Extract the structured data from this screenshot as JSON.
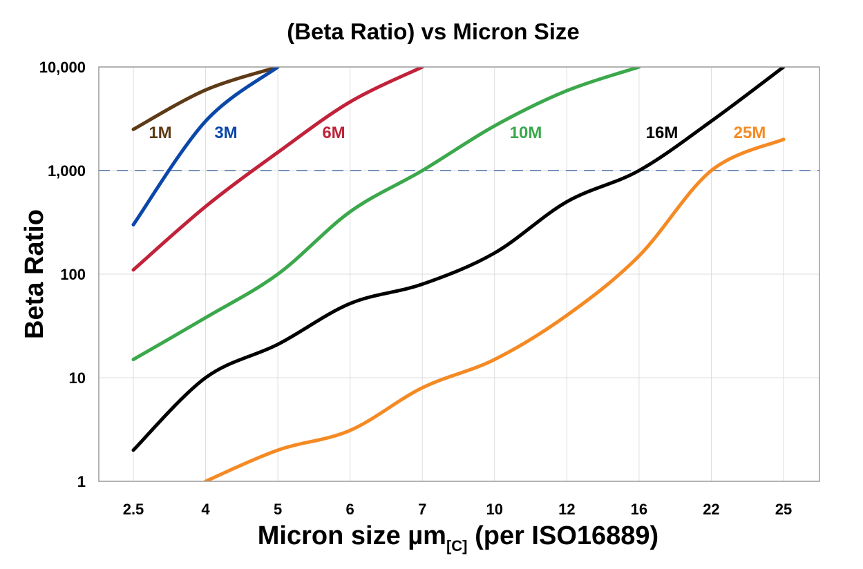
{
  "chart_data": {
    "type": "line",
    "title": "(Beta Ratio) vs Micron Size",
    "xlabel_main": "Micron size µm",
    "xlabel_sub": "[C]",
    "xlabel_tail": " (per ISO16889)",
    "ylabel": "Beta Ratio",
    "yscale": "log",
    "ylim": [
      1,
      10000
    ],
    "yticks": [
      1,
      10,
      100,
      1000,
      10000
    ],
    "ytick_labels": [
      "1",
      "10",
      "100",
      "1,000",
      "10,000"
    ],
    "categories": [
      "2.5",
      "4",
      "5",
      "6",
      "7",
      "10",
      "12",
      "16",
      "22",
      "25"
    ],
    "grid": true,
    "reference_line": {
      "y": 1000,
      "style": "dashed",
      "color": "#4a6fa5"
    },
    "series": [
      {
        "name": "1M",
        "color": "#5e3a17",
        "values": [
          2500,
          6000,
          10000,
          null,
          null,
          null,
          null,
          null,
          null,
          null
        ]
      },
      {
        "name": "3M",
        "color": "#0a47a9",
        "values": [
          300,
          3000,
          10000,
          null,
          null,
          null,
          null,
          null,
          null,
          null
        ]
      },
      {
        "name": "6M",
        "color": "#c1223a",
        "values": [
          110,
          450,
          1500,
          4600,
          10000,
          null,
          null,
          null,
          null,
          null
        ]
      },
      {
        "name": "10M",
        "color": "#3ba84b",
        "values": [
          15,
          38,
          100,
          400,
          1000,
          2700,
          5900,
          10000,
          null,
          null
        ]
      },
      {
        "name": "16M",
        "color": "#000000",
        "values": [
          2,
          10,
          21,
          52,
          80,
          160,
          500,
          1000,
          3000,
          10000
        ]
      },
      {
        "name": "25M",
        "color": "#f58a24",
        "values": [
          null,
          1,
          2,
          3.1,
          8,
          15,
          40,
          150,
          1000,
          2000
        ]
      }
    ]
  }
}
